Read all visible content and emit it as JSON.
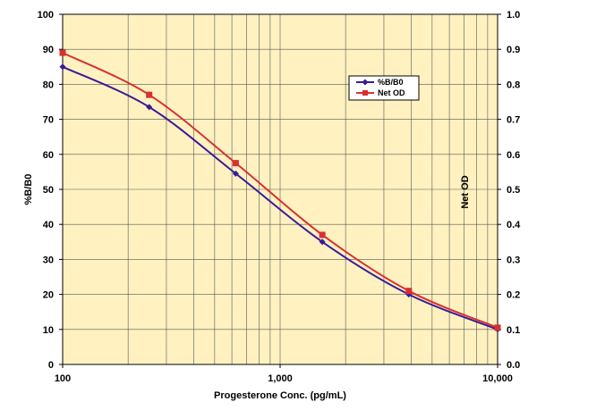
{
  "chart_data": {
    "type": "line",
    "xlabel": "Progesterone Conc. (pg/mL)",
    "ylabel": "%B/B0",
    "y2label": "Net OD",
    "x_scale": "log",
    "xlim": [
      100,
      10000
    ],
    "ylim": [
      0,
      100
    ],
    "y2lim": [
      0,
      1.0
    ],
    "x_ticks": [
      100,
      1000,
      10000
    ],
    "x_tick_labels": [
      "100",
      "1,000",
      "10,000"
    ],
    "y_ticks": [
      0,
      10,
      20,
      30,
      40,
      50,
      60,
      70,
      80,
      90,
      100
    ],
    "y_tick_labels": [
      "0",
      "10",
      "20",
      "30",
      "40",
      "50",
      "60",
      "70",
      "80",
      "90",
      "100"
    ],
    "y2_ticks": [
      0,
      0.1,
      0.2,
      0.3,
      0.4,
      0.5,
      0.6,
      0.7,
      0.8,
      0.9,
      1.0
    ],
    "y2_tick_labels": [
      "0.0",
      "0.1",
      "0.2",
      "0.3",
      "0.4",
      "0.5",
      "0.6",
      "0.7",
      "0.8",
      "0.9",
      "1.0"
    ],
    "grid": true,
    "legend_position": "upper-right",
    "plot_background": "#fff2c0",
    "series": [
      {
        "name": "%B/B0",
        "axis": "left",
        "color": "#3a1a9a",
        "marker": "diamond",
        "x": [
          100,
          250,
          625,
          1563,
          3906,
          10000
        ],
        "values": [
          85,
          73.5,
          54.5,
          35,
          20,
          10
        ]
      },
      {
        "name": "Net OD",
        "axis": "right",
        "color": "#d83030",
        "marker": "square",
        "x": [
          100,
          250,
          625,
          1563,
          3906,
          10000
        ],
        "values": [
          0.89,
          0.77,
          0.575,
          0.37,
          0.21,
          0.105
        ]
      }
    ]
  }
}
